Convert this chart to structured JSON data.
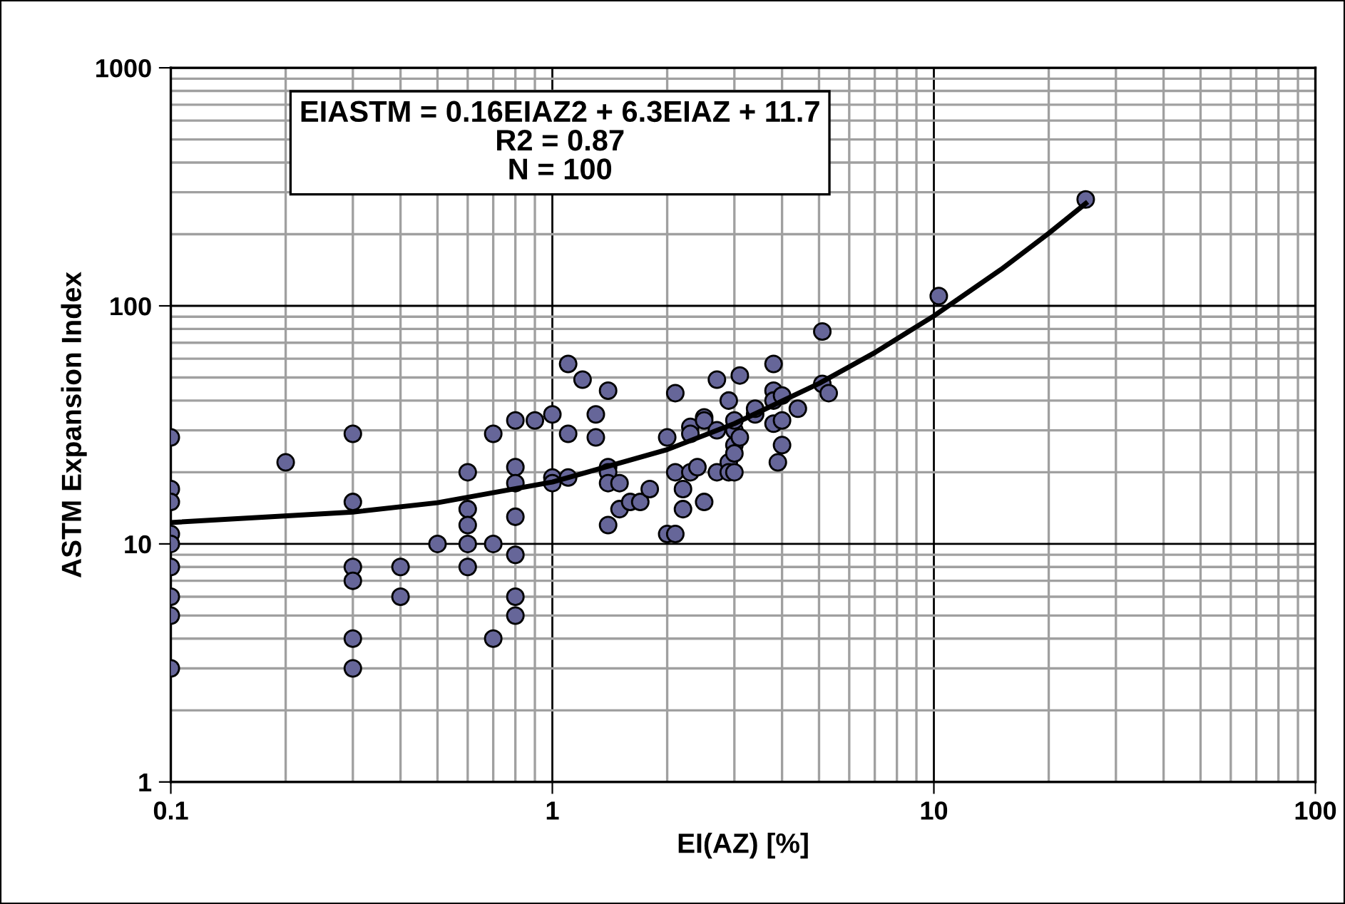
{
  "chart_data": {
    "type": "scatter",
    "xlabel": "EI(AZ) [%]",
    "ylabel": "ASTM Expansion Index",
    "log": "xy",
    "grid": true,
    "legend": false,
    "marker": "circle",
    "xlim": [
      0.1,
      100
    ],
    "ylim": [
      1,
      1000
    ],
    "xticks": [
      0.1,
      1,
      10,
      100
    ],
    "yticks": [
      1,
      10,
      100,
      1000
    ],
    "annotations": [
      "EIASTM = 0.16EIAZ2 + 6.3EIAZ + 11.7\nR2 = 0.87\nN = 100"
    ],
    "series": [
      {
        "color": "#666699",
        "x": [
          0.1,
          0.1,
          0.1,
          0.1,
          0.1,
          0.1,
          0.1,
          0.1,
          0.1,
          0.2,
          0.3,
          0.3,
          0.3,
          0.3,
          0.3,
          0.3,
          0.4,
          0.4,
          0.5,
          0.6,
          0.6,
          0.6,
          0.6,
          0.6,
          0.7,
          0.7,
          0.7,
          0.8,
          0.8,
          0.8,
          0.8,
          0.8,
          0.8,
          0.8,
          0.9,
          1.0,
          1.0,
          1.0,
          1.1,
          1.1,
          1.1,
          1.2,
          1.3,
          1.3,
          1.4,
          1.4,
          1.4,
          1.4,
          1.4,
          1.5,
          1.5,
          1.6,
          1.7,
          1.8,
          2.0,
          2.0,
          2.1,
          2.1,
          2.1,
          2.2,
          2.2,
          2.3,
          2.3,
          2.3,
          2.4,
          2.5,
          2.5,
          2.5,
          2.7,
          2.7,
          2.7,
          2.9,
          2.9,
          2.9,
          3.0,
          3.0,
          3.0,
          3.0,
          3.0,
          3.1,
          3.1,
          3.4,
          3.4,
          3.8,
          3.8,
          3.8,
          3.8,
          3.9,
          4.0,
          4.0,
          4.0,
          4.4,
          5.1,
          5.1,
          5.3,
          10.3,
          25
        ],
        "values": [
          28,
          17,
          15,
          11,
          10,
          8,
          6,
          5,
          3,
          22,
          29,
          15,
          8,
          7,
          4,
          3,
          8,
          6,
          10,
          20,
          14,
          12,
          10,
          8,
          29,
          10,
          4,
          33,
          21,
          18,
          13,
          9,
          6,
          5,
          33,
          35,
          19,
          18,
          57,
          29,
          19,
          49,
          35,
          28,
          44,
          21,
          20,
          18,
          12,
          18,
          14,
          15,
          15,
          17,
          28,
          11,
          43,
          20,
          11,
          17,
          14,
          31,
          29,
          20,
          21,
          34,
          33,
          15,
          49,
          30,
          20,
          40,
          22,
          20,
          26,
          24,
          30,
          33,
          20,
          51,
          28,
          35,
          37,
          57,
          44,
          40,
          32,
          22,
          26,
          42,
          33,
          37,
          78,
          47,
          43,
          110,
          280
        ]
      },
      {
        "type": "line",
        "color": "#000000",
        "marker": "none",
        "x": [
          0.1,
          0.3,
          0.5,
          1,
          2,
          3,
          5,
          7,
          10,
          15,
          20,
          25
        ],
        "values": [
          12.3,
          13.6,
          14.9,
          18.2,
          24.9,
          32.0,
          47.2,
          63.6,
          90.7,
          142.2,
          201.7,
          269.2
        ]
      }
    ]
  }
}
